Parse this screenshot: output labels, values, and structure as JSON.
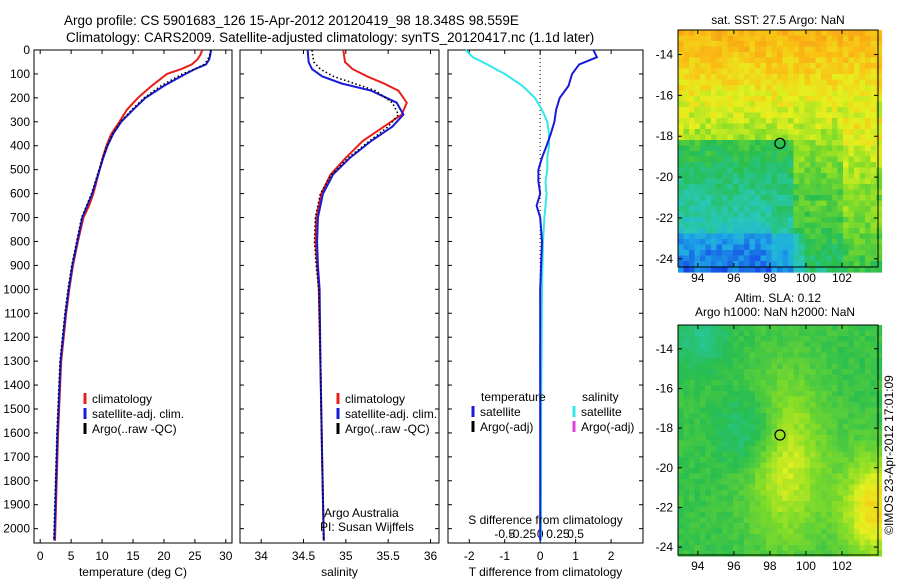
{
  "header": {
    "line1": "Argo profile: CS 5901683_126 15-Apr-2012 20120419_98 18.348S 98.559E",
    "line2": "Climatology: CARS2009. Satellite-adjusted climatology: synTS_20120417.nc (1.1d later)"
  },
  "colors": {
    "climatology": "#e8201a",
    "satellite": "#1a1ad8",
    "argo": "#000000",
    "sat_salinity": "#33e8e8",
    "argo_adj_salinity": "#e040e0"
  },
  "chart_data": [
    {
      "type": "line",
      "id": "temperature",
      "xlabel": "temperature (deg C)",
      "xlim": [
        -1,
        31
      ],
      "xticks": [
        0,
        5,
        10,
        15,
        20,
        25,
        30
      ],
      "ylim": [
        0,
        2060
      ],
      "yticks": [
        0,
        100,
        200,
        300,
        400,
        500,
        600,
        700,
        800,
        900,
        1000,
        1100,
        1200,
        1300,
        1400,
        1500,
        1600,
        1700,
        1800,
        1900,
        2000
      ],
      "legend": [
        {
          "label": "climatology",
          "color": "#e8201a"
        },
        {
          "label": "satellite-adj. clim.",
          "color": "#1a1ad8"
        },
        {
          "label": "Argo(..raw -QC)",
          "color": "#000000"
        }
      ],
      "series": [
        {
          "name": "climatology",
          "color": "#e8201a",
          "style": "solid",
          "x": [
            26.2,
            25.9,
            25.4,
            24.5,
            22.8,
            20.5,
            18.0,
            15.8,
            14.0,
            12.8,
            11.5,
            10.7,
            10.1,
            9.6,
            9.1,
            8.6,
            7.9,
            7.0,
            6.1,
            5.3,
            4.7,
            4.2,
            3.4,
            2.9,
            2.4
          ],
          "y": [
            0,
            20,
            40,
            60,
            80,
            100,
            150,
            200,
            250,
            300,
            350,
            400,
            450,
            500,
            550,
            600,
            650,
            700,
            800,
            900,
            1000,
            1100,
            1300,
            1600,
            2050
          ]
        },
        {
          "name": "satellite-adj. clim.",
          "color": "#1a1ad8",
          "style": "solid",
          "x": [
            27.6,
            27.5,
            27.3,
            26.8,
            25.0,
            23.5,
            20.0,
            17.0,
            15.0,
            13.1,
            11.8,
            10.9,
            10.2,
            9.6,
            9.0,
            8.4,
            7.6,
            6.8,
            6.0,
            5.2,
            4.6,
            4.1,
            3.3,
            2.8,
            2.3
          ],
          "y": [
            0,
            20,
            40,
            60,
            80,
            100,
            150,
            200,
            250,
            300,
            350,
            400,
            450,
            500,
            550,
            600,
            650,
            700,
            800,
            900,
            1000,
            1100,
            1300,
            1600,
            2050
          ]
        },
        {
          "name": "Argo(..raw -QC)",
          "color": "#000000",
          "style": "dots",
          "x": [
            27.6,
            27.4,
            27.1,
            26.5,
            25.0,
            23.0,
            19.5,
            16.8,
            14.8,
            13.0,
            11.7,
            10.8,
            10.1,
            9.5,
            8.9,
            8.3,
            7.5,
            6.7,
            5.9,
            5.1,
            4.5,
            4.0,
            3.2,
            2.7,
            2.2
          ],
          "y": [
            0,
            20,
            40,
            60,
            80,
            100,
            150,
            200,
            250,
            300,
            350,
            400,
            450,
            500,
            550,
            600,
            650,
            700,
            800,
            900,
            1000,
            1100,
            1300,
            1600,
            2050
          ]
        }
      ]
    },
    {
      "type": "line",
      "id": "salinity",
      "xlabel": "salinity",
      "xlim": [
        33.75,
        36.1
      ],
      "xticks": [
        34,
        34.5,
        35,
        35.5,
        36
      ],
      "ylim": [
        0,
        2060
      ],
      "legend": [
        {
          "label": "climatology",
          "color": "#e8201a"
        },
        {
          "label": "satellite-adj. clim.",
          "color": "#1a1ad8"
        },
        {
          "label": "Argo(..raw -QC)",
          "color": "#000000"
        }
      ],
      "annotations": [
        "Argo Australia",
        "PI: Susan Wijffels"
      ],
      "series": [
        {
          "name": "climatology",
          "color": "#e8201a",
          "style": "solid",
          "x": [
            34.97,
            34.99,
            35.08,
            35.25,
            35.45,
            35.62,
            35.72,
            35.66,
            35.45,
            35.2,
            35.0,
            34.82,
            34.71,
            34.65,
            34.64,
            34.66,
            34.68,
            34.7,
            34.72,
            34.74
          ],
          "y": [
            0,
            50,
            80,
            110,
            140,
            170,
            220,
            270,
            320,
            380,
            450,
            520,
            600,
            700,
            800,
            900,
            1000,
            1300,
            1700,
            2050
          ]
        },
        {
          "name": "satellite-adj. clim.",
          "color": "#1a1ad8",
          "style": "solid",
          "x": [
            34.55,
            34.56,
            34.6,
            34.72,
            34.95,
            35.3,
            35.6,
            35.68,
            35.55,
            35.3,
            35.05,
            34.85,
            34.73,
            34.67,
            34.66,
            34.67,
            34.69,
            34.7,
            34.72,
            34.74
          ],
          "y": [
            0,
            50,
            80,
            110,
            140,
            170,
            220,
            270,
            320,
            380,
            450,
            520,
            600,
            700,
            800,
            900,
            1000,
            1300,
            1700,
            2050
          ]
        },
        {
          "name": "Argo(..raw -QC)",
          "color": "#000000",
          "style": "dots",
          "x": [
            34.6,
            34.62,
            34.7,
            34.85,
            35.1,
            35.35,
            35.55,
            35.62,
            35.5,
            35.28,
            35.03,
            34.83,
            34.7,
            34.64,
            34.63,
            34.65,
            34.68,
            34.7,
            34.72,
            34.74
          ],
          "y": [
            0,
            50,
            80,
            110,
            140,
            170,
            220,
            270,
            320,
            380,
            450,
            520,
            600,
            700,
            800,
            900,
            1000,
            1300,
            1700,
            2050
          ]
        }
      ]
    },
    {
      "type": "line",
      "id": "difference",
      "xlabel": "T difference from climatology",
      "xlabel_top": "S difference from climatology",
      "xlim": [
        -2.6,
        2.9
      ],
      "xticks": [
        -2,
        -1,
        0,
        1,
        2
      ],
      "xticks_top": [
        "-0.5",
        "-0.25",
        "0",
        "0.25",
        "0.5"
      ],
      "legend_left": {
        "title": "temperature",
        "items": [
          {
            "label": "satellite",
            "color": "#1a1ad8"
          },
          {
            "label": "Argo(-adj)",
            "color": "#000000"
          }
        ]
      },
      "legend_right": {
        "title": "salinity",
        "items": [
          {
            "label": "satellite",
            "color": "#33e8e8"
          },
          {
            "label": "Argo(-adj)",
            "color": "#e040e0"
          }
        ]
      },
      "series": [
        {
          "name": "temperature satellite",
          "color": "#1a1ad8",
          "style": "solid",
          "x": [
            1.5,
            1.6,
            1.1,
            0.9,
            0.8,
            0.55,
            0.45,
            0.4,
            0.3,
            0.18,
            0.05,
            -0.05,
            -0.05,
            0.0,
            -0.1,
            0.0,
            0.05,
            0.0,
            0.0,
            0.0
          ],
          "y": [
            0,
            30,
            60,
            100,
            150,
            200,
            250,
            300,
            350,
            400,
            450,
            500,
            550,
            600,
            650,
            700,
            800,
            1000,
            1500,
            2050
          ]
        },
        {
          "name": "salinity satellite",
          "color": "#33e8e8",
          "style": "solid",
          "x": [
            -2.1,
            -1.9,
            -1.5,
            -1.0,
            -0.5,
            -0.15,
            0.05,
            0.2,
            0.25,
            0.25,
            0.2,
            0.2,
            0.15,
            0.18,
            0.15,
            0.12,
            0.08,
            0.05,
            0.03,
            0.02
          ],
          "y": [
            0,
            30,
            60,
            100,
            150,
            200,
            250,
            300,
            350,
            400,
            450,
            500,
            550,
            600,
            650,
            700,
            800,
            1000,
            1500,
            2050
          ]
        }
      ]
    },
    {
      "type": "heatmap",
      "id": "sst_map",
      "title": "sat. SST: 27.5 Argo: NaN",
      "xlim": [
        92.9,
        104.0
      ],
      "xticks": [
        94,
        96,
        98,
        100,
        102
      ],
      "ylim": [
        -24.4,
        -12.8
      ],
      "yticks": [
        -14,
        -16,
        -18,
        -20,
        -22,
        -24
      ],
      "marker": {
        "lon": 98.559,
        "lat": -18.348
      }
    },
    {
      "type": "heatmap",
      "id": "sla_map",
      "title_line1": "Altim. SLA: 0.12",
      "title_line2": "Argo h1000: NaN h2000: NaN",
      "xlim": [
        92.9,
        104.0
      ],
      "xticks": [
        94,
        96,
        98,
        100,
        102
      ],
      "ylim": [
        -24.4,
        -12.8
      ],
      "yticks": [
        -14,
        -16,
        -18,
        -20,
        -22,
        -24
      ],
      "marker": {
        "lon": 98.559,
        "lat": -18.348
      },
      "side_label": "©IMOS 23-Apr-2012 17:01:09"
    }
  ]
}
